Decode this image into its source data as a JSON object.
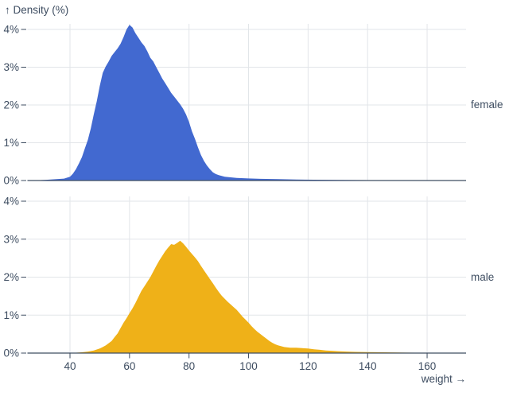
{
  "chart_data": {
    "type": "area",
    "title": "↑ Density (%)",
    "ylabel": "Density (%)",
    "xlabel": "weight →",
    "x_field": "weight",
    "grid": true,
    "legend_position": "right-facet-labels",
    "xlim": [
      26,
      173
    ],
    "ylim_percent": [
      0,
      4
    ],
    "x_ticks": [
      40,
      60,
      80,
      100,
      120,
      140,
      160
    ],
    "x_tick_labels": [
      "40",
      "60",
      "80",
      "100",
      "120",
      "140",
      "160"
    ],
    "y_ticks_percent": [
      0,
      1,
      2,
      3,
      4
    ],
    "y_tick_labels": [
      "0%",
      "1%",
      "2%",
      "3%",
      "4%"
    ],
    "facets": [
      {
        "label": "female",
        "color": "#4269d0",
        "points": [
          [
            26,
            0
          ],
          [
            30,
            0.01
          ],
          [
            32,
            0.02
          ],
          [
            34,
            0.03
          ],
          [
            36,
            0.04
          ],
          [
            38,
            0.05
          ],
          [
            40,
            0.1
          ],
          [
            41,
            0.18
          ],
          [
            42,
            0.3
          ],
          [
            43,
            0.45
          ],
          [
            44,
            0.62
          ],
          [
            45,
            0.85
          ],
          [
            46,
            1.08
          ],
          [
            47,
            1.38
          ],
          [
            48,
            1.75
          ],
          [
            49,
            2.1
          ],
          [
            50,
            2.5
          ],
          [
            51,
            2.85
          ],
          [
            52,
            3.02
          ],
          [
            53,
            3.15
          ],
          [
            54,
            3.3
          ],
          [
            55,
            3.4
          ],
          [
            56,
            3.5
          ],
          [
            57,
            3.62
          ],
          [
            58,
            3.8
          ],
          [
            59,
            4.0
          ],
          [
            60,
            4.12
          ],
          [
            61,
            4.05
          ],
          [
            62,
            3.9
          ],
          [
            63,
            3.78
          ],
          [
            64,
            3.66
          ],
          [
            65,
            3.56
          ],
          [
            66,
            3.42
          ],
          [
            67,
            3.25
          ],
          [
            68,
            3.15
          ],
          [
            69,
            3.0
          ],
          [
            70,
            2.85
          ],
          [
            71,
            2.7
          ],
          [
            72,
            2.58
          ],
          [
            73,
            2.45
          ],
          [
            74,
            2.32
          ],
          [
            75,
            2.22
          ],
          [
            76,
            2.12
          ],
          [
            77,
            2.02
          ],
          [
            78,
            1.9
          ],
          [
            79,
            1.75
          ],
          [
            80,
            1.55
          ],
          [
            81,
            1.3
          ],
          [
            82,
            1.1
          ],
          [
            83,
            0.88
          ],
          [
            84,
            0.68
          ],
          [
            85,
            0.52
          ],
          [
            86,
            0.4
          ],
          [
            87,
            0.3
          ],
          [
            88,
            0.22
          ],
          [
            89,
            0.17
          ],
          [
            90,
            0.14
          ],
          [
            92,
            0.1
          ],
          [
            96,
            0.07
          ],
          [
            100,
            0.055
          ],
          [
            104,
            0.045
          ],
          [
            110,
            0.035
          ],
          [
            116,
            0.028
          ],
          [
            122,
            0.022
          ],
          [
            130,
            0.015
          ],
          [
            140,
            0.01
          ],
          [
            152,
            0.007
          ],
          [
            162,
            0.005
          ],
          [
            173,
            0.004
          ]
        ]
      },
      {
        "label": "male",
        "color": "#efb118",
        "points": [
          [
            26,
            0
          ],
          [
            38,
            0.003
          ],
          [
            40,
            0.005
          ],
          [
            42,
            0.01
          ],
          [
            44,
            0.02
          ],
          [
            46,
            0.04
          ],
          [
            48,
            0.07
          ],
          [
            50,
            0.12
          ],
          [
            51,
            0.16
          ],
          [
            52,
            0.2
          ],
          [
            53,
            0.26
          ],
          [
            54,
            0.32
          ],
          [
            55,
            0.42
          ],
          [
            56,
            0.52
          ],
          [
            57,
            0.66
          ],
          [
            58,
            0.8
          ],
          [
            59,
            0.92
          ],
          [
            60,
            1.05
          ],
          [
            61,
            1.18
          ],
          [
            62,
            1.32
          ],
          [
            63,
            1.48
          ],
          [
            64,
            1.64
          ],
          [
            65,
            1.76
          ],
          [
            66,
            1.88
          ],
          [
            67,
            2.0
          ],
          [
            68,
            2.15
          ],
          [
            69,
            2.3
          ],
          [
            70,
            2.44
          ],
          [
            71,
            2.56
          ],
          [
            72,
            2.68
          ],
          [
            73,
            2.78
          ],
          [
            74,
            2.87
          ],
          [
            75,
            2.85
          ],
          [
            76,
            2.9
          ],
          [
            77,
            2.96
          ],
          [
            78,
            2.89
          ],
          [
            79,
            2.8
          ],
          [
            80,
            2.7
          ],
          [
            81,
            2.61
          ],
          [
            82,
            2.52
          ],
          [
            83,
            2.42
          ],
          [
            84,
            2.3
          ],
          [
            85,
            2.18
          ],
          [
            86,
            2.07
          ],
          [
            87,
            1.95
          ],
          [
            88,
            1.84
          ],
          [
            89,
            1.72
          ],
          [
            90,
            1.61
          ],
          [
            91,
            1.51
          ],
          [
            92,
            1.43
          ],
          [
            93,
            1.35
          ],
          [
            94,
            1.28
          ],
          [
            95,
            1.21
          ],
          [
            96,
            1.14
          ],
          [
            97,
            1.05
          ],
          [
            98,
            0.96
          ],
          [
            99,
            0.88
          ],
          [
            100,
            0.8
          ],
          [
            101,
            0.71
          ],
          [
            102,
            0.63
          ],
          [
            103,
            0.56
          ],
          [
            104,
            0.5
          ],
          [
            105,
            0.44
          ],
          [
            106,
            0.38
          ],
          [
            107,
            0.32
          ],
          [
            108,
            0.27
          ],
          [
            109,
            0.23
          ],
          [
            110,
            0.2
          ],
          [
            112,
            0.16
          ],
          [
            114,
            0.14
          ],
          [
            116,
            0.14
          ],
          [
            118,
            0.13
          ],
          [
            120,
            0.12
          ],
          [
            122,
            0.1
          ],
          [
            124,
            0.085
          ],
          [
            126,
            0.07
          ],
          [
            128,
            0.06
          ],
          [
            130,
            0.05
          ],
          [
            133,
            0.04
          ],
          [
            136,
            0.032
          ],
          [
            140,
            0.026
          ],
          [
            145,
            0.02
          ],
          [
            150,
            0.015
          ],
          [
            156,
            0.011
          ],
          [
            164,
            0.008
          ],
          [
            173,
            0.006
          ]
        ]
      }
    ],
    "colors": {
      "female": "#4269d0",
      "male": "#efb118",
      "text": "#3e4d61",
      "gridline": "#e2e5e9",
      "background": "#ffffff"
    }
  }
}
